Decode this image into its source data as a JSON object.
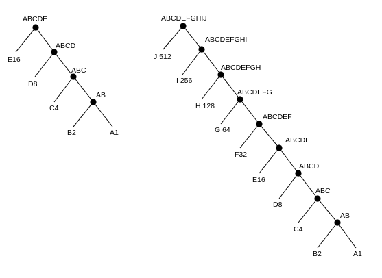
{
  "colors": {
    "line": "#000000",
    "node": "#000000",
    "text": "#000000",
    "background": "#ffffff"
  },
  "trees": [
    {
      "name": "small-tree",
      "internal": [
        {
          "id": "t1-abcde",
          "label": "ABCDE"
        },
        {
          "id": "t1-abcd",
          "label": "ABCD"
        },
        {
          "id": "t1-abc",
          "label": "ABC"
        },
        {
          "id": "t1-ab",
          "label": "AB"
        }
      ],
      "leaves": [
        {
          "id": "t1-e",
          "label": "E16"
        },
        {
          "id": "t1-d",
          "label": "D8"
        },
        {
          "id": "t1-c",
          "label": "C4"
        },
        {
          "id": "t1-b",
          "label": "B2"
        },
        {
          "id": "t1-a",
          "label": "A1"
        }
      ]
    },
    {
      "name": "large-tree",
      "internal": [
        {
          "id": "t2-abcdefghij",
          "label": "ABCDEFGHIJ"
        },
        {
          "id": "t2-abcdefghi",
          "label": "ABCDEFGHI"
        },
        {
          "id": "t2-abcdefgh",
          "label": "ABCDEFGH"
        },
        {
          "id": "t2-abcdefg",
          "label": "ABCDEFG"
        },
        {
          "id": "t2-abcdef",
          "label": "ABCDEF"
        },
        {
          "id": "t2-abcde",
          "label": "ABCDE"
        },
        {
          "id": "t2-abcd",
          "label": "ABCD"
        },
        {
          "id": "t2-abc",
          "label": "ABC"
        },
        {
          "id": "t2-ab",
          "label": "AB"
        }
      ],
      "leaves": [
        {
          "id": "t2-j",
          "label": "J 512"
        },
        {
          "id": "t2-i",
          "label": "I 256"
        },
        {
          "id": "t2-h",
          "label": "H 128"
        },
        {
          "id": "t2-g",
          "label": "G 64"
        },
        {
          "id": "t2-f",
          "label": "F32"
        },
        {
          "id": "t2-e",
          "label": "E16"
        },
        {
          "id": "t2-d",
          "label": "D8"
        },
        {
          "id": "t2-c",
          "label": "C4"
        },
        {
          "id": "t2-b",
          "label": "B2"
        },
        {
          "id": "t2-a",
          "label": "A1"
        }
      ]
    }
  ]
}
